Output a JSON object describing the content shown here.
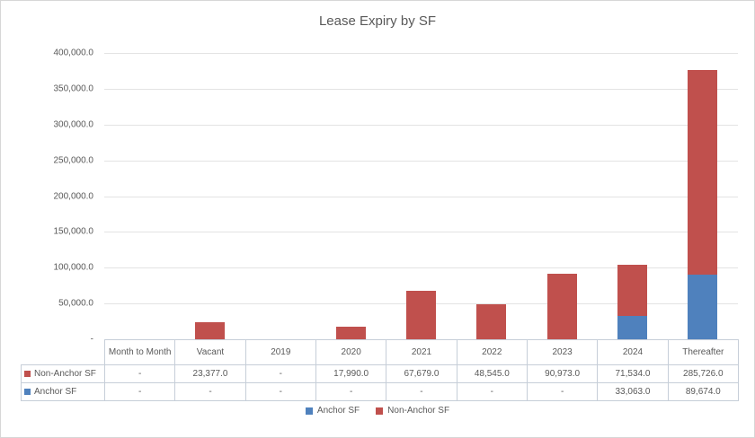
{
  "chart": {
    "title": "Lease Expiry by SF"
  },
  "chart_data": {
    "type": "bar",
    "stacked": true,
    "title": "Lease Expiry by SF",
    "categories": [
      "Month to Month",
      "Vacant",
      "2019",
      "2020",
      "2021",
      "2022",
      "2023",
      "2024",
      "Thereafter"
    ],
    "series": [
      {
        "name": "Anchor SF",
        "color": "#4F81BD",
        "values": [
          null,
          null,
          null,
          null,
          null,
          null,
          null,
          33063,
          89674
        ],
        "display": [
          "-",
          "-",
          "-",
          "-",
          "-",
          "-",
          "-",
          "33,063.0",
          "89,674.0"
        ]
      },
      {
        "name": "Non-Anchor SF",
        "color": "#C0504D",
        "values": [
          null,
          23377,
          null,
          17990,
          67679,
          48545,
          90973,
          71534,
          285726
        ],
        "display": [
          "-",
          "23,377.0",
          "-",
          "17,990.0",
          "67,679.0",
          "48,545.0",
          "90,973.0",
          "71,534.0",
          "285,726.0"
        ]
      }
    ],
    "ylim": [
      0,
      400000
    ],
    "ytick_interval": 50000,
    "ytick_labels_top_to_bottom": [
      "400,000.0",
      "350,000.0",
      "300,000.0",
      "250,000.0",
      "200,000.0",
      "150,000.0",
      "100,000.0",
      "50,000.0",
      "-"
    ],
    "grid": true,
    "legend_position": "bottom",
    "legend_order": [
      "Anchor SF",
      "Non-Anchor SF"
    ],
    "table_series_order": [
      "Non-Anchor SF",
      "Anchor SF"
    ]
  }
}
